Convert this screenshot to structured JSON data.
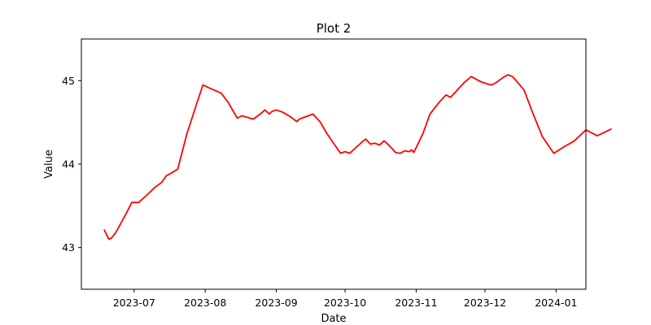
{
  "chart_data": {
    "type": "line",
    "title": "Plot 2",
    "xlabel": "Date",
    "ylabel": "Value",
    "xlim": [
      "2023-06-08",
      "2024-01-14"
    ],
    "ylim": [
      42.5,
      45.5
    ],
    "grid": false,
    "x_ticks": [
      "2023-07",
      "2023-08",
      "2023-09",
      "2023-10",
      "2023-11",
      "2023-12",
      "2024-01"
    ],
    "y_ticks": [
      43,
      44,
      45
    ],
    "series": [
      {
        "color": "#ff0000",
        "points": [
          [
            "2023-06-18",
            43.21
          ],
          [
            "2023-06-20",
            43.1
          ],
          [
            "2023-06-21",
            43.11
          ],
          [
            "2023-06-23",
            43.18
          ],
          [
            "2023-06-27",
            43.38
          ],
          [
            "2023-06-30",
            43.54
          ],
          [
            "2023-07-03",
            43.54
          ],
          [
            "2023-07-07",
            43.64
          ],
          [
            "2023-07-10",
            43.72
          ],
          [
            "2023-07-13",
            43.78
          ],
          [
            "2023-07-15",
            43.86
          ],
          [
            "2023-07-17",
            43.89
          ],
          [
            "2023-07-20",
            43.94
          ],
          [
            "2023-07-24",
            44.36
          ],
          [
            "2023-07-28",
            44.7
          ],
          [
            "2023-07-31",
            44.95
          ],
          [
            "2023-08-03",
            44.91
          ],
          [
            "2023-08-08",
            44.85
          ],
          [
            "2023-08-11",
            44.74
          ],
          [
            "2023-08-15",
            44.55
          ],
          [
            "2023-08-17",
            44.58
          ],
          [
            "2023-08-22",
            44.54
          ],
          [
            "2023-08-25",
            44.6
          ],
          [
            "2023-08-27",
            44.65
          ],
          [
            "2023-08-29",
            44.6
          ],
          [
            "2023-08-30",
            44.63
          ],
          [
            "2023-09-01",
            44.65
          ],
          [
            "2023-09-04",
            44.62
          ],
          [
            "2023-09-07",
            44.57
          ],
          [
            "2023-09-10",
            44.51
          ],
          [
            "2023-09-11",
            44.54
          ],
          [
            "2023-09-14",
            44.57
          ],
          [
            "2023-09-17",
            44.6
          ],
          [
            "2023-09-20",
            44.51
          ],
          [
            "2023-09-23",
            44.37
          ],
          [
            "2023-09-29",
            44.13
          ],
          [
            "2023-10-01",
            44.15
          ],
          [
            "2023-10-03",
            44.13
          ],
          [
            "2023-10-05",
            44.18
          ],
          [
            "2023-10-09",
            44.28
          ],
          [
            "2023-10-10",
            44.3
          ],
          [
            "2023-10-12",
            44.24
          ],
          [
            "2023-10-14",
            44.25
          ],
          [
            "2023-10-16",
            44.23
          ],
          [
            "2023-10-18",
            44.28
          ],
          [
            "2023-10-20",
            44.23
          ],
          [
            "2023-10-23",
            44.14
          ],
          [
            "2023-10-25",
            44.13
          ],
          [
            "2023-10-27",
            44.16
          ],
          [
            "2023-10-29",
            44.15
          ],
          [
            "2023-10-30",
            44.17
          ],
          [
            "2023-10-31",
            44.14
          ],
          [
            "2023-11-04",
            44.37
          ],
          [
            "2023-11-07",
            44.6
          ],
          [
            "2023-11-11",
            44.74
          ],
          [
            "2023-11-14",
            44.83
          ],
          [
            "2023-11-16",
            44.8
          ],
          [
            "2023-11-19",
            44.89
          ],
          [
            "2023-11-22",
            44.98
          ],
          [
            "2023-11-25",
            45.05
          ],
          [
            "2023-11-29",
            44.99
          ],
          [
            "2023-12-02",
            44.96
          ],
          [
            "2023-12-04",
            44.95
          ],
          [
            "2023-12-06",
            44.98
          ],
          [
            "2023-12-09",
            45.04
          ],
          [
            "2023-12-11",
            45.07
          ],
          [
            "2023-12-13",
            45.05
          ],
          [
            "2023-12-18",
            44.89
          ],
          [
            "2023-12-22",
            44.6
          ],
          [
            "2023-12-26",
            44.33
          ],
          [
            "2023-12-31",
            44.13
          ],
          [
            "2024-01-04",
            44.2
          ],
          [
            "2024-01-09",
            44.28
          ],
          [
            "2024-01-14",
            44.41
          ],
          [
            "2024-01-19",
            44.34
          ],
          [
            "2024-01-25",
            44.42
          ]
        ]
      }
    ]
  }
}
